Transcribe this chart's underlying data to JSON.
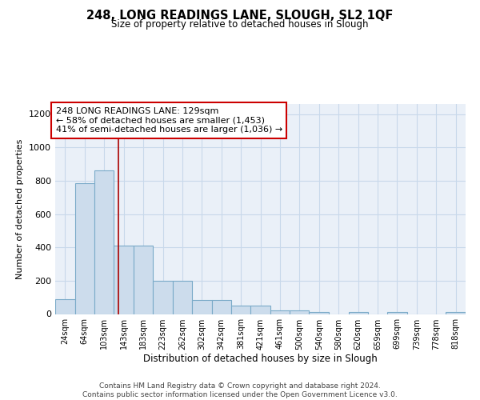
{
  "title": "248, LONG READINGS LANE, SLOUGH, SL2 1QF",
  "subtitle": "Size of property relative to detached houses in Slough",
  "xlabel": "Distribution of detached houses by size in Slough",
  "ylabel": "Number of detached properties",
  "categories": [
    "24sqm",
    "64sqm",
    "103sqm",
    "143sqm",
    "183sqm",
    "223sqm",
    "262sqm",
    "302sqm",
    "342sqm",
    "381sqm",
    "421sqm",
    "461sqm",
    "500sqm",
    "540sqm",
    "580sqm",
    "620sqm",
    "659sqm",
    "699sqm",
    "739sqm",
    "778sqm",
    "818sqm"
  ],
  "bar_heights": [
    90,
    785,
    860,
    410,
    410,
    200,
    200,
    85,
    85,
    50,
    50,
    20,
    20,
    10,
    0,
    10,
    0,
    10,
    0,
    0,
    10
  ],
  "bar_color": "#ccdcec",
  "bar_edge_color": "#7aaac8",
  "bar_edge_width": 0.8,
  "ylim": [
    0,
    1260
  ],
  "yticks": [
    0,
    200,
    400,
    600,
    800,
    1000,
    1200
  ],
  "property_size_label": "143sqm",
  "property_bin_index": 3,
  "red_line_color": "#aa0000",
  "annotation_text": "248 LONG READINGS LANE: 129sqm\n← 58% of detached houses are smaller (1,453)\n41% of semi-detached houses are larger (1,036) →",
  "annotation_box_color": "#ffffff",
  "annotation_border_color": "#cc0000",
  "grid_color": "#c8d8ea",
  "bg_color": "#eaf0f8",
  "footer_text": "Contains HM Land Registry data © Crown copyright and database right 2024.\nContains public sector information licensed under the Open Government Licence v3.0.",
  "bin_edges": [
    4,
    44,
    83,
    123,
    163,
    203,
    243,
    282,
    322,
    361,
    401,
    441,
    480,
    520,
    560,
    600,
    639,
    679,
    719,
    758,
    798,
    838
  ],
  "red_line_x": 133
}
